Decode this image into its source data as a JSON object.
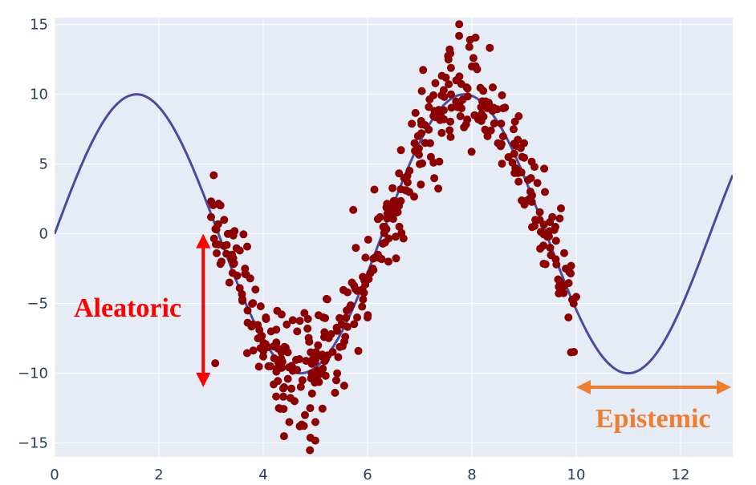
{
  "chart_data": {
    "type": "scatter",
    "title": "",
    "xlabel": "",
    "ylabel": "",
    "xlim": [
      0,
      13
    ],
    "ylim": [
      -16,
      15.5
    ],
    "x_ticks": [
      0,
      2,
      4,
      6,
      8,
      10,
      12
    ],
    "y_ticks": [
      -15,
      -10,
      -5,
      0,
      5,
      10,
      15
    ],
    "grid": true,
    "legend": "none",
    "background_color": "#e5ecf6",
    "gridline_color": "#ffffff",
    "tick_label_color": "#2a3f5f",
    "series": [
      {
        "type": "line",
        "function": "10*sin(x)",
        "x_range": [
          0,
          13
        ],
        "color": "#4b4b9b"
      },
      {
        "type": "scatter",
        "color": "#8b0000",
        "x_range": [
          3,
          10
        ],
        "noise_sd_range": [
          1,
          3
        ],
        "points": [
          [
            3.0,
            1.2
          ],
          [
            3.05,
            4.2
          ],
          [
            3.1,
            0.3
          ],
          [
            3.15,
            2.1
          ],
          [
            3.2,
            -2.0
          ],
          [
            3.25,
            1.0
          ],
          [
            3.3,
            -0.8
          ],
          [
            3.35,
            -3.5
          ],
          [
            3.4,
            -1.5
          ],
          [
            3.45,
            0.2
          ],
          [
            3.5,
            -3.0
          ],
          [
            3.55,
            -1.2
          ],
          [
            3.6,
            -4.8
          ],
          [
            3.65,
            -2.5
          ],
          [
            3.7,
            -5.5
          ],
          [
            3.75,
            -3.2
          ],
          [
            3.8,
            -6.5
          ],
          [
            3.85,
            -4.0
          ],
          [
            3.9,
            -7.5
          ],
          [
            3.95,
            -5.2
          ],
          [
            4.0,
            -8.8
          ],
          [
            4.05,
            -6.0
          ],
          [
            4.1,
            -9.5
          ],
          [
            4.15,
            -7.0
          ],
          [
            4.2,
            -10.8
          ],
          [
            4.25,
            -7.8
          ],
          [
            4.3,
            -12.5
          ],
          [
            4.35,
            -8.5
          ],
          [
            4.4,
            -11.0
          ],
          [
            4.45,
            -6.5
          ],
          [
            4.5,
            -13.5
          ],
          [
            4.55,
            -9.5
          ],
          [
            4.6,
            -12.0
          ],
          [
            4.65,
            -7.0
          ],
          [
            4.7,
            -13.8
          ],
          [
            4.75,
            -10.5
          ],
          [
            4.8,
            -13.0
          ],
          [
            4.85,
            -6.8
          ],
          [
            4.9,
            -12.5
          ],
          [
            4.95,
            -9.0
          ],
          [
            5.0,
            -13.5
          ],
          [
            5.05,
            -8.0
          ],
          [
            5.1,
            -10.0
          ],
          [
            5.15,
            -6.0
          ],
          [
            5.2,
            -9.0
          ],
          [
            5.3,
            -7.2
          ],
          [
            5.4,
            -10.5
          ],
          [
            5.5,
            -6.5
          ],
          [
            5.6,
            -5.5
          ],
          [
            5.7,
            -3.5
          ],
          [
            5.8,
            -6.0
          ],
          [
            5.9,
            -4.0
          ],
          [
            6.0,
            -6.0
          ],
          [
            6.1,
            -2.5
          ],
          [
            6.2,
            -1.5
          ],
          [
            6.3,
            0.5
          ],
          [
            6.4,
            -2.0
          ],
          [
            6.5,
            1.5
          ],
          [
            6.6,
            2.0
          ],
          [
            6.7,
            4.0
          ],
          [
            6.8,
            3.0
          ],
          [
            6.9,
            6.5
          ],
          [
            7.0,
            5.0
          ],
          [
            7.1,
            7.8
          ],
          [
            7.2,
            6.5
          ],
          [
            7.3,
            10.8
          ],
          [
            7.4,
            8.5
          ],
          [
            7.5,
            11.2
          ],
          [
            7.55,
            12.5
          ],
          [
            7.6,
            10.0
          ],
          [
            7.7,
            11.0
          ],
          [
            7.8,
            9.0
          ],
          [
            7.9,
            10.5
          ],
          [
            7.95,
            13.4
          ],
          [
            8.0,
            12.0
          ],
          [
            8.05,
            8.5
          ],
          [
            8.1,
            11.8
          ],
          [
            8.2,
            9.5
          ],
          [
            8.3,
            7.0
          ],
          [
            8.4,
            10.5
          ],
          [
            8.5,
            6.5
          ],
          [
            8.6,
            9.0
          ],
          [
            8.7,
            5.5
          ],
          [
            8.8,
            7.5
          ],
          [
            8.9,
            4.5
          ],
          [
            9.0,
            6.5
          ],
          [
            9.1,
            2.5
          ],
          [
            9.2,
            4.8
          ],
          [
            9.3,
            1.0
          ],
          [
            9.4,
            3.0
          ],
          [
            9.5,
            -1.0
          ],
          [
            9.6,
            0.5
          ],
          [
            9.7,
            -3.5
          ],
          [
            9.8,
            -2.5
          ],
          [
            9.85,
            -6.0
          ],
          [
            9.9,
            -8.5
          ],
          [
            9.95,
            -5.0
          ]
        ]
      }
    ],
    "annotations": [
      {
        "text": "Aleatoric",
        "color": "#ff0000",
        "arrow": "vertical double-headed at x≈2.85 from y≈-11 to y≈0"
      },
      {
        "text": "Epistemic",
        "color": "#ed7d31",
        "arrow": "horizontal double-headed at y≈-11 from x≈10 to x≈13"
      }
    ]
  }
}
